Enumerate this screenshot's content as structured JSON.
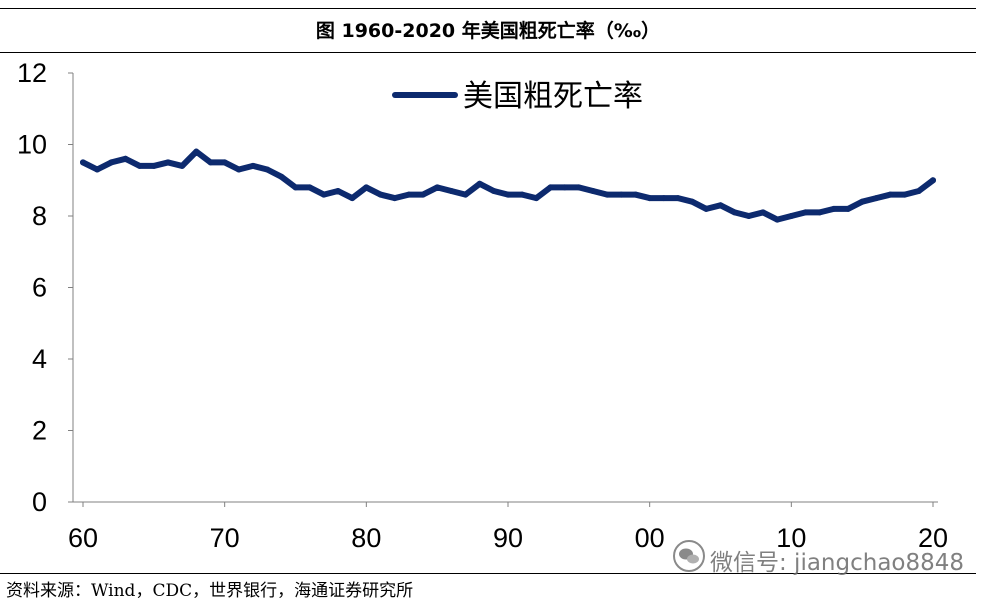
{
  "figure": {
    "title": "图  1960-2020 年美国粗死亡率（‰）",
    "source": "资料来源：Wind，CDC，世界银行，海通证券研究所",
    "watermark": "微信号: jiangchao8848"
  },
  "colors": {
    "line": "#0d2a6e",
    "axis": "#808080",
    "text": "#000000"
  },
  "chart_data": {
    "type": "line",
    "title": "图 1960-2020 年美国粗死亡率（‰）",
    "xlabel": "",
    "ylabel": "",
    "xlim": [
      1960,
      2020
    ],
    "ylim": [
      0,
      12
    ],
    "legend_position": "top-center",
    "grid": false,
    "x_ticks": [
      {
        "value": 1960,
        "label": "60"
      },
      {
        "value": 1970,
        "label": "70"
      },
      {
        "value": 1980,
        "label": "80"
      },
      {
        "value": 1990,
        "label": "90"
      },
      {
        "value": 2000,
        "label": "00"
      },
      {
        "value": 2010,
        "label": "10"
      },
      {
        "value": 2020,
        "label": "20"
      }
    ],
    "y_ticks": [
      {
        "value": 0,
        "label": "0"
      },
      {
        "value": 2,
        "label": "2"
      },
      {
        "value": 4,
        "label": "4"
      },
      {
        "value": 6,
        "label": "6"
      },
      {
        "value": 8,
        "label": "8"
      },
      {
        "value": 10,
        "label": "10"
      },
      {
        "value": 12,
        "label": "12"
      }
    ],
    "series": [
      {
        "name": "美国粗死亡率",
        "x": [
          1960,
          1961,
          1962,
          1963,
          1964,
          1965,
          1966,
          1967,
          1968,
          1969,
          1970,
          1971,
          1972,
          1973,
          1974,
          1975,
          1976,
          1977,
          1978,
          1979,
          1980,
          1981,
          1982,
          1983,
          1984,
          1985,
          1986,
          1987,
          1988,
          1989,
          1990,
          1991,
          1992,
          1993,
          1994,
          1995,
          1996,
          1997,
          1998,
          1999,
          2000,
          2001,
          2002,
          2003,
          2004,
          2005,
          2006,
          2007,
          2008,
          2009,
          2010,
          2011,
          2012,
          2013,
          2014,
          2015,
          2016,
          2017,
          2018,
          2019,
          2020
        ],
        "values": [
          9.5,
          9.3,
          9.5,
          9.6,
          9.4,
          9.4,
          9.5,
          9.4,
          9.8,
          9.5,
          9.5,
          9.3,
          9.4,
          9.3,
          9.1,
          8.8,
          8.8,
          8.6,
          8.7,
          8.5,
          8.8,
          8.6,
          8.5,
          8.6,
          8.6,
          8.8,
          8.7,
          8.6,
          8.9,
          8.7,
          8.6,
          8.6,
          8.5,
          8.8,
          8.8,
          8.8,
          8.7,
          8.6,
          8.6,
          8.6,
          8.5,
          8.5,
          8.5,
          8.4,
          8.2,
          8.3,
          8.1,
          8.0,
          8.1,
          7.9,
          8.0,
          8.1,
          8.1,
          8.2,
          8.2,
          8.4,
          8.5,
          8.6,
          8.6,
          8.7,
          9.0
        ]
      }
    ]
  }
}
